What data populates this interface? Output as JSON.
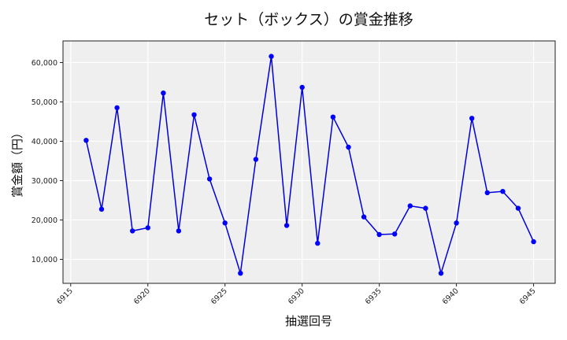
{
  "chart_data": {
    "type": "line",
    "title": "セット（ボックス）の賞金推移",
    "xlabel": "抽選回号",
    "ylabel": "賞金額（円）",
    "x": [
      6916,
      6917,
      6918,
      6919,
      6920,
      6921,
      6922,
      6923,
      6924,
      6925,
      6926,
      6927,
      6928,
      6929,
      6930,
      6931,
      6932,
      6933,
      6934,
      6935,
      6936,
      6937,
      6938,
      6939,
      6940,
      6941,
      6942,
      6943,
      6944,
      6945
    ],
    "series": [
      {
        "name": "賞金額",
        "color": "#0000dd",
        "marker_color": "#0000ff",
        "values": [
          40250,
          22740,
          48520,
          17220,
          18010,
          52260,
          17220,
          46750,
          30410,
          19250,
          6460,
          35390,
          61570,
          18600,
          53700,
          14070,
          46160,
          38490,
          20770,
          16300,
          16440,
          23580,
          22990,
          6460,
          19250,
          45830,
          26930,
          27260,
          22990,
          14470
        ]
      }
    ],
    "xticks": [
      6915,
      6920,
      6925,
      6930,
      6935,
      6940,
      6945
    ],
    "xtick_labels": [
      "6915",
      "6920",
      "6925",
      "6930",
      "6935",
      "6940",
      "6945"
    ],
    "yticks": [
      10000,
      20000,
      30000,
      40000,
      50000,
      60000
    ],
    "ytick_labels": [
      "10,000",
      "20,000",
      "30,000",
      "40,000",
      "50,000",
      "60,000"
    ],
    "xlim": [
      6914.5,
      6946.4
    ],
    "ylim": [
      3900,
      65500
    ],
    "grid": true,
    "legend": null,
    "background": "#efefef"
  }
}
